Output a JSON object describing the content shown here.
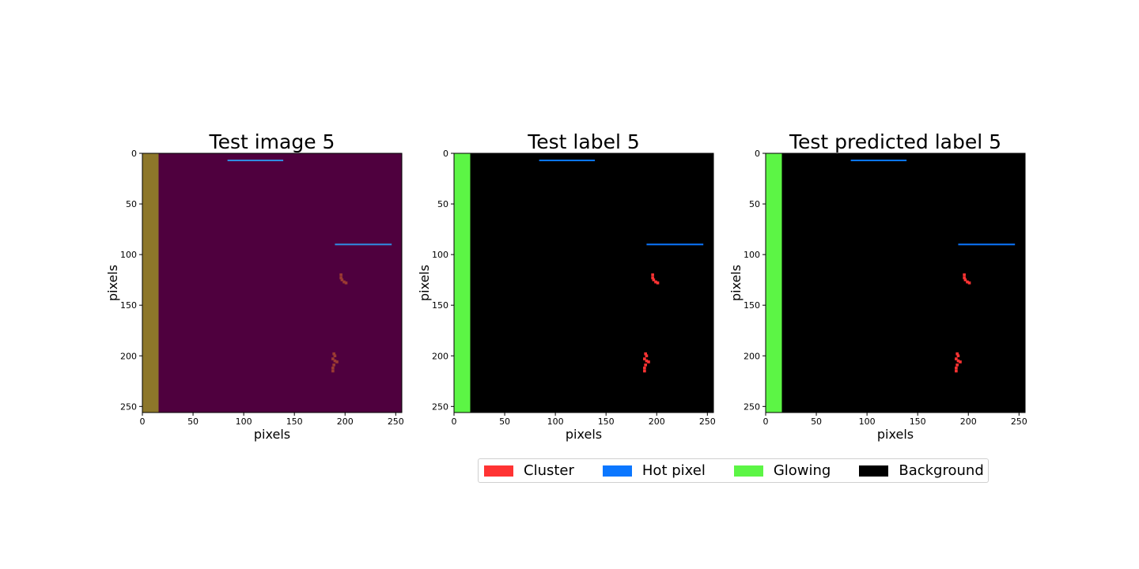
{
  "chart_data": [
    {
      "type": "heatmap",
      "title": "Test image 5",
      "xlabel": "pixels",
      "ylabel": "pixels",
      "xlim": [
        0,
        256
      ],
      "ylim": [
        256,
        0
      ],
      "xticks": [
        0,
        50,
        100,
        150,
        200,
        250
      ],
      "yticks": [
        0,
        50,
        100,
        150,
        200,
        250
      ],
      "colors": {
        "background": "#4f003e",
        "glowing": "#8d772a",
        "hot_pixel": "#2f8ee3",
        "cluster": "#9a3a32"
      },
      "glowing_band": {
        "x": [
          0,
          16
        ],
        "y": [
          0,
          256
        ]
      },
      "hot_pixel_lines": [
        {
          "x": [
            84,
            139
          ],
          "y": 7
        },
        {
          "x": [
            190,
            246
          ],
          "y": 90
        }
      ],
      "clusters": [
        {
          "points": [
            [
              196,
              120
            ],
            [
              196,
              123
            ],
            [
              197,
              125
            ],
            [
              199,
              127
            ],
            [
              201,
              128
            ]
          ]
        },
        {
          "points": [
            [
              189,
              198
            ],
            [
              190,
              200
            ],
            [
              188,
              203
            ],
            [
              190,
              205
            ],
            [
              192,
              206
            ],
            [
              189,
              209
            ],
            [
              188,
              212
            ],
            [
              188,
              215
            ]
          ]
        }
      ]
    },
    {
      "type": "heatmap",
      "title": "Test label 5",
      "xlabel": "pixels",
      "ylabel": "pixels",
      "xlim": [
        0,
        256
      ],
      "ylim": [
        256,
        0
      ],
      "xticks": [
        0,
        50,
        100,
        150,
        200,
        250
      ],
      "yticks": [
        0,
        50,
        100,
        150,
        200,
        250
      ],
      "colors": {
        "background": "#000000",
        "glowing": "#5cf545",
        "hot_pixel": "#0b77ff",
        "cluster": "#ff3333"
      },
      "glowing_band": {
        "x": [
          0,
          16
        ],
        "y": [
          0,
          256
        ]
      },
      "hot_pixel_lines": [
        {
          "x": [
            84,
            139
          ],
          "y": 7
        },
        {
          "x": [
            190,
            246
          ],
          "y": 90
        }
      ],
      "clusters": [
        {
          "points": [
            [
              196,
              120
            ],
            [
              196,
              123
            ],
            [
              197,
              125
            ],
            [
              199,
              127
            ],
            [
              201,
              128
            ]
          ]
        },
        {
          "points": [
            [
              189,
              198
            ],
            [
              190,
              200
            ],
            [
              188,
              203
            ],
            [
              190,
              205
            ],
            [
              192,
              206
            ],
            [
              189,
              209
            ],
            [
              188,
              212
            ],
            [
              188,
              215
            ]
          ]
        }
      ]
    },
    {
      "type": "heatmap",
      "title": "Test predicted label 5",
      "xlabel": "pixels",
      "ylabel": "pixels",
      "xlim": [
        0,
        256
      ],
      "ylim": [
        256,
        0
      ],
      "xticks": [
        0,
        50,
        100,
        150,
        200,
        250
      ],
      "yticks": [
        0,
        50,
        100,
        150,
        200,
        250
      ],
      "colors": {
        "background": "#000000",
        "glowing": "#5cf545",
        "hot_pixel": "#0b77ff",
        "cluster": "#ff3333"
      },
      "glowing_band": {
        "x": [
          0,
          16
        ],
        "y": [
          0,
          256
        ]
      },
      "hot_pixel_lines": [
        {
          "x": [
            84,
            139
          ],
          "y": 7
        },
        {
          "x": [
            190,
            246
          ],
          "y": 90
        }
      ],
      "clusters": [
        {
          "points": [
            [
              196,
              120
            ],
            [
              196,
              123
            ],
            [
              197,
              125
            ],
            [
              199,
              127
            ],
            [
              201,
              128
            ]
          ]
        },
        {
          "points": [
            [
              189,
              198
            ],
            [
              190,
              200
            ],
            [
              188,
              203
            ],
            [
              190,
              205
            ],
            [
              192,
              206
            ],
            [
              189,
              209
            ],
            [
              188,
              212
            ],
            [
              188,
              215
            ]
          ]
        }
      ]
    }
  ],
  "legend": {
    "placement": "bottom-center",
    "entries": [
      {
        "label": "Cluster",
        "color": "#ff3333"
      },
      {
        "label": "Hot pixel",
        "color": "#0b77ff"
      },
      {
        "label": "Glowing",
        "color": "#5cf545"
      },
      {
        "label": "Background",
        "color": "#000000"
      }
    ]
  }
}
